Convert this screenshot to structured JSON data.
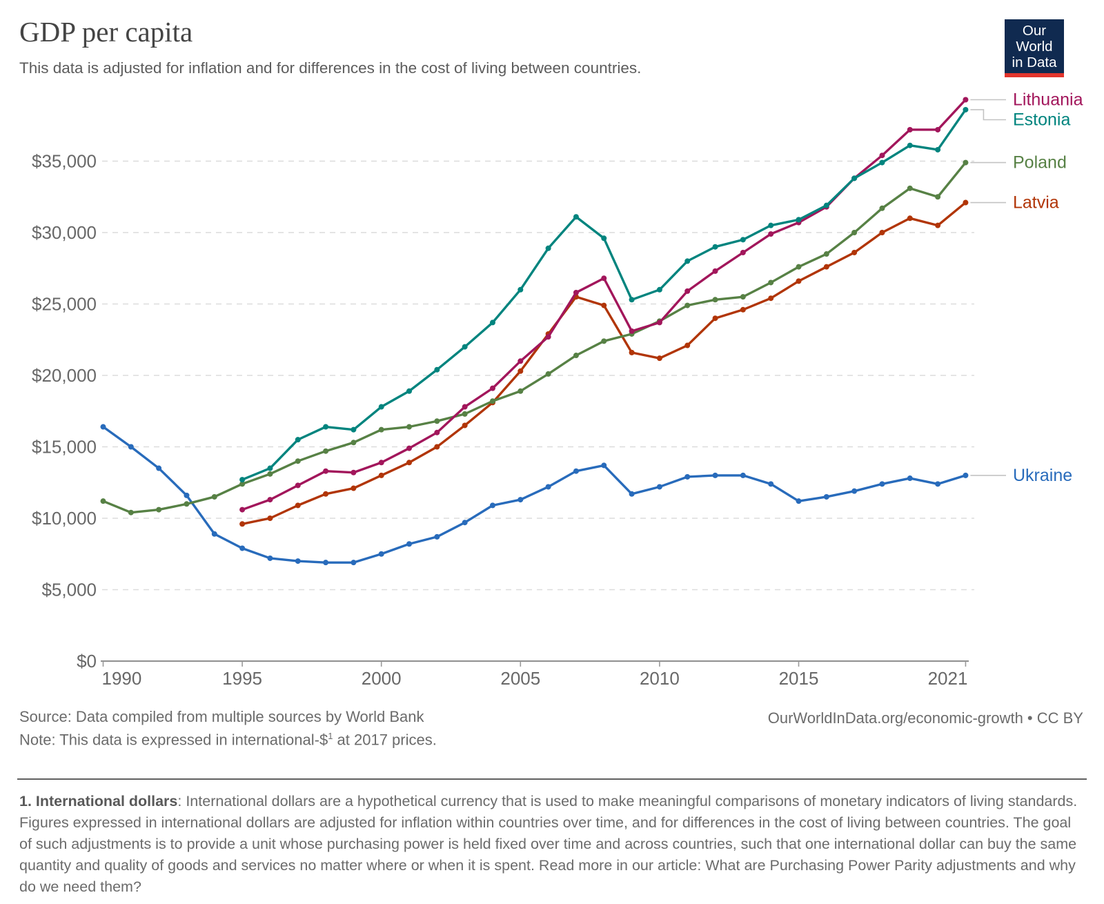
{
  "header": {
    "title": "GDP per capita",
    "subtitle": "This data is adjusted for inflation and for differences in the cost of living between countries.",
    "logo": {
      "line1": "Our World",
      "line2": "in Data"
    }
  },
  "chart_data": {
    "type": "line",
    "title": "GDP per capita",
    "xlabel": "",
    "ylabel": "",
    "xlim": [
      1990,
      2021
    ],
    "ylim": [
      0,
      40000
    ],
    "grid": "horizontal-dashed",
    "legend_position": "right-of-line-ends",
    "unit": "international-$ at 2017 prices",
    "x_ticks": [
      1990,
      1995,
      2000,
      2005,
      2010,
      2015,
      2021
    ],
    "y_ticks": [
      {
        "value": 0,
        "label": "$0"
      },
      {
        "value": 5000,
        "label": "$5,000"
      },
      {
        "value": 10000,
        "label": "$10,000"
      },
      {
        "value": 15000,
        "label": "$15,000"
      },
      {
        "value": 20000,
        "label": "$20,000"
      },
      {
        "value": 25000,
        "label": "$25,000"
      },
      {
        "value": 30000,
        "label": "$30,000"
      },
      {
        "value": 35000,
        "label": "$35,000"
      }
    ],
    "series": [
      {
        "name": "Ukraine",
        "color": "#286BBB",
        "start_year": 1990,
        "end_year": 2021,
        "values": [
          16400,
          15000,
          13500,
          11600,
          8900,
          7900,
          7200,
          7000,
          6900,
          6900,
          7500,
          8200,
          8700,
          9700,
          10900,
          11300,
          12200,
          13300,
          13700,
          11700,
          12200,
          12900,
          13000,
          13000,
          12400,
          11200,
          11500,
          11900,
          12400,
          12800,
          12400,
          13000
        ]
      },
      {
        "name": "Latvia",
        "color": "#B13507",
        "start_year": 1995,
        "end_year": 2021,
        "values": [
          9600,
          10000,
          10900,
          11700,
          12100,
          13000,
          13900,
          15000,
          16500,
          18100,
          20300,
          22900,
          25500,
          24900,
          21600,
          21200,
          22100,
          24000,
          24600,
          25400,
          26600,
          27600,
          28600,
          30000,
          31000,
          30500,
          32100
        ]
      },
      {
        "name": "Poland",
        "color": "#578145",
        "start_year": 1990,
        "end_year": 2021,
        "values": [
          11200,
          10400,
          10600,
          11000,
          11500,
          12400,
          13100,
          14000,
          14700,
          15300,
          16200,
          16400,
          16800,
          17300,
          18200,
          18900,
          20100,
          21400,
          22400,
          22900,
          23800,
          24900,
          25300,
          25500,
          26500,
          27600,
          28500,
          30000,
          31700,
          33100,
          32500,
          34900
        ]
      },
      {
        "name": "Lithuania",
        "color": "#A2165B",
        "start_year": 1995,
        "end_year": 2021,
        "values": [
          10600,
          11300,
          12300,
          13300,
          13200,
          13900,
          14900,
          16000,
          17800,
          19100,
          21000,
          22700,
          25800,
          26800,
          23100,
          23700,
          25900,
          27300,
          28600,
          29900,
          30700,
          31800,
          33800,
          35400,
          37200,
          37200,
          39300
        ]
      },
      {
        "name": "Estonia",
        "color": "#00847E",
        "start_year": 1995,
        "end_year": 2021,
        "values": [
          12700,
          13500,
          15500,
          16400,
          16200,
          17800,
          18900,
          20400,
          22000,
          23700,
          26000,
          28900,
          31100,
          29600,
          25300,
          26000,
          28000,
          29000,
          29500,
          30500,
          30900,
          31900,
          33800,
          34900,
          36100,
          35800,
          38600
        ]
      }
    ]
  },
  "footer": {
    "source": "Source: Data compiled from multiple sources by World Bank",
    "note_prefix": "Note: This data is expressed in international-$",
    "note_sup": "1",
    "note_suffix": " at 2017 prices.",
    "link": "OurWorldInData.org/economic-growth",
    "separator": " • ",
    "license": "CC BY"
  },
  "footnote": {
    "lead": "1. International dollars",
    "body": ": International dollars are a hypothetical currency that is used to make meaningful comparisons of monetary indicators of living standards. Figures expressed in international dollars are adjusted for inflation within countries over time, and for differences in the cost of living between countries. The goal of such adjustments is to provide a unit whose purchasing power is held fixed over time and across countries, such that one international dollar can buy the same quantity and quality of goods and services no matter where or when it is spent. Read more in our article: What are Purchasing Power Parity adjustments and why do we need them?"
  }
}
